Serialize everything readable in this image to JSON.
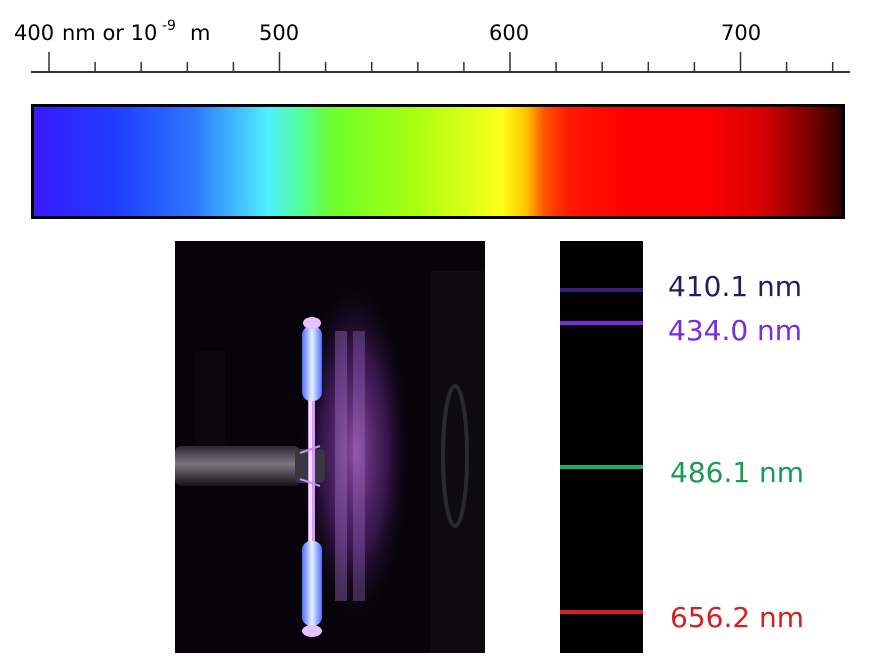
{
  "axis": {
    "unit_prefix": "400",
    "unit_text": "nm or 10",
    "unit_exponent": "-9",
    "unit_suffix": "m",
    "tick_labels": [
      "500",
      "600",
      "700"
    ]
  },
  "spectrum_lines": [
    {
      "label": "410.1 nm",
      "color": "#2a1a66",
      "wavelength": 410.1
    },
    {
      "label": "434.0 nm",
      "color": "#7a2be0",
      "wavelength": 434.0
    },
    {
      "label": "486.1 nm",
      "color": "#1a9a55",
      "wavelength": 486.1
    },
    {
      "label": "656.2 nm",
      "color": "#d42020",
      "wavelength": 656.2
    }
  ],
  "colors": {
    "line_410": "#3a1f7a",
    "line_434": "#7a2be0",
    "line_486": "#1fae5a",
    "line_656": "#d42020"
  }
}
